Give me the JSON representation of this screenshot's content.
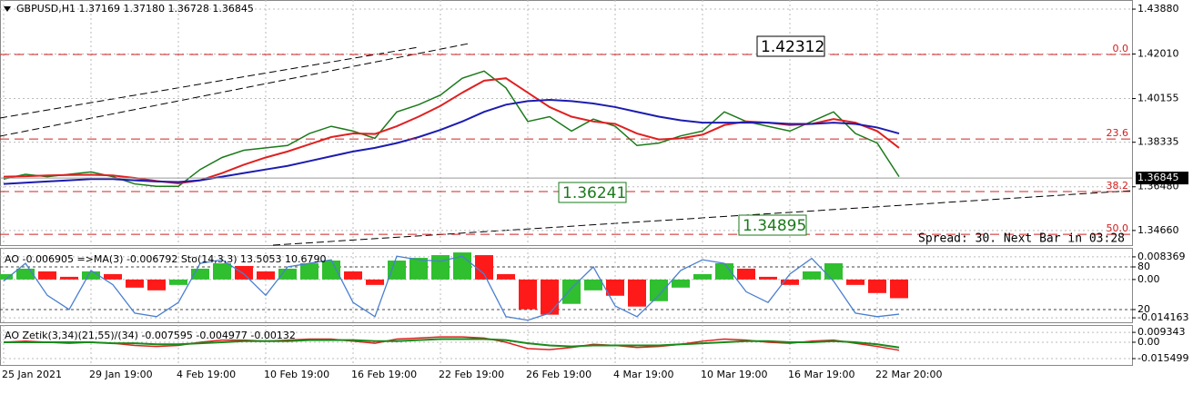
{
  "header": "GBPUSD,H1  1.37169 1.37180 1.36728 1.36845",
  "status": "Spread: 30. Next Bar in 03:28",
  "annotations": [
    "1.42312",
    "1.36241",
    "1.34895"
  ],
  "chart_data": [
    {
      "type": "line",
      "categories": [
        "25 Jan 2021",
        null,
        null,
        null,
        "29 Jan 19:00",
        null,
        null,
        null,
        "4 Feb 19:00",
        null,
        null,
        null,
        "10 Feb 19:00",
        null,
        null,
        null,
        "16 Feb 19:00",
        null,
        null,
        null,
        "22 Feb 19:00",
        null,
        null,
        null,
        "26 Feb 19:00",
        null,
        null,
        null,
        "4 Mar 19:00",
        null,
        null,
        null,
        "10 Mar 19:00",
        null,
        null,
        null,
        "16 Mar 19:00",
        null,
        null,
        null,
        "22 Mar 20:00",
        null
      ],
      "series": [
        {
          "color": "#1a7a1a",
          "values": [
            1.368,
            1.37,
            1.369,
            1.37,
            1.371,
            1.369,
            1.366,
            1.365,
            1.365,
            1.372,
            1.377,
            1.38,
            1.381,
            1.382,
            1.387,
            1.39,
            1.388,
            1.385,
            1.396,
            1.399,
            1.403,
            1.41,
            1.413,
            1.406,
            1.392,
            1.394,
            1.388,
            1.393,
            1.39,
            1.382,
            1.383,
            1.386,
            1.388,
            1.396,
            1.392,
            1.39,
            1.388,
            1.392,
            1.396,
            1.387,
            1.383,
            1.369
          ]
        },
        {
          "color": "#e02020",
          "values": [
            1.369,
            1.3692,
            1.3695,
            1.3697,
            1.3698,
            1.3695,
            1.3685,
            1.3672,
            1.3662,
            1.3675,
            1.3705,
            1.374,
            1.377,
            1.3795,
            1.3825,
            1.3855,
            1.387,
            1.3868,
            1.39,
            1.394,
            1.3985,
            1.404,
            1.409,
            1.41,
            1.404,
            1.398,
            1.394,
            1.392,
            1.391,
            1.387,
            1.3845,
            1.385,
            1.3865,
            1.3905,
            1.392,
            1.3915,
            1.3905,
            1.391,
            1.393,
            1.3915,
            1.388,
            1.381
          ]
        },
        {
          "color": "#1c1cb0",
          "values": [
            1.366,
            1.3665,
            1.367,
            1.3675,
            1.368,
            1.368,
            1.3675,
            1.367,
            1.3668,
            1.3675,
            1.369,
            1.3705,
            1.372,
            1.3735,
            1.3755,
            1.3775,
            1.3795,
            1.381,
            1.383,
            1.3855,
            1.3885,
            1.392,
            1.396,
            1.399,
            1.4005,
            1.401,
            1.4005,
            1.3995,
            1.398,
            1.396,
            1.394,
            1.3925,
            1.3915,
            1.3915,
            1.3915,
            1.3915,
            1.391,
            1.391,
            1.3915,
            1.391,
            1.3895,
            1.387
          ]
        }
      ],
      "ylim": [
        1.3405,
        1.4426
      ],
      "yticks": [
        {
          "value": 1.4388,
          "label": "1.43880"
        },
        {
          "value": 1.4201,
          "label": "1.42010"
        },
        1.40155,
        1.38335,
        {
          "value": 1.3648,
          "label": "1.36480"
        },
        {
          "value": 1.3466,
          "label": "1.34660"
        }
      ],
      "current_price": {
        "value": 1.36845,
        "label": "1.36845"
      },
      "fib_levels": [
        {
          "value": 1.4199,
          "label": "0.0"
        },
        {
          "value": 1.3847,
          "label": "23.6"
        },
        {
          "value": 1.3628,
          "label": "38.2"
        },
        {
          "value": 1.345,
          "label": "50.0"
        }
      ],
      "fib_color": "#d02020",
      "grid": true
    },
    {
      "type": "bar",
      "title": "AO -0.006905 =>MA(3) -0.006792 Sto(14,3,3) 13.5053 10.6790",
      "up_color": "#2fbf2f",
      "down_color": "#ff1a1a",
      "series": [
        {
          "values": [
            0.002,
            0.004,
            0.003,
            0.001,
            0.003,
            0.002,
            -0.003,
            -0.004,
            -0.002,
            0.004,
            0.006,
            0.005,
            0.003,
            0.004,
            0.006,
            0.007,
            0.003,
            -0.002,
            0.007,
            0.008,
            0.009,
            0.01,
            0.009,
            0.002,
            -0.011,
            -0.013,
            -0.009,
            -0.004,
            -0.006,
            -0.01,
            -0.008,
            -0.003,
            0.002,
            0.006,
            0.004,
            0.001,
            -0.002,
            0.003,
            0.006,
            -0.002,
            -0.005,
            -0.0069
          ]
        },
        {
          "color": "#4a7fd0",
          "axis": "y2",
          "values": [
            60,
            85,
            40,
            20,
            75,
            55,
            15,
            10,
            30,
            85,
            90,
            70,
            40,
            80,
            85,
            90,
            30,
            10,
            95,
            90,
            88,
            95,
            70,
            10,
            5,
            15,
            50,
            80,
            25,
            10,
            40,
            75,
            90,
            85,
            45,
            30,
            70,
            92,
            60,
            15,
            10,
            13.5
          ]
        }
      ],
      "ylim": [
        -0.0158,
        0.0117
      ],
      "yticks": [
        0.008369,
        {
          "value": 0,
          "label": "0.00"
        },
        -0.014163
      ],
      "y2lim": [
        2.1,
        106.8
      ],
      "y2ticks": [
        80,
        20
      ]
    },
    {
      "type": "line",
      "title": "AO Zetik(3,34)(21,55)/(34) -0.007595 -0.004977 -0.00132",
      "series": [
        {
          "color": "#e02020",
          "values": [
            0,
            0.001,
            0,
            -0.001,
            0,
            -0.001,
            -0.003,
            -0.004,
            -0.003,
            0,
            0.002,
            0.002,
            0.001,
            0.002,
            0.003,
            0.003,
            0.001,
            -0.001,
            0.003,
            0.004,
            0.005,
            0.005,
            0.004,
            0,
            -0.006,
            -0.007,
            -0.005,
            -0.002,
            -0.003,
            -0.005,
            -0.004,
            -0.002,
            0.001,
            0.003,
            0.002,
            0,
            -0.001,
            0.001,
            0.002,
            -0.001,
            -0.004,
            -0.0076
          ]
        },
        {
          "color": "#1a8a1a",
          "values": [
            0,
            0,
            0,
            0,
            0,
            -0.001,
            -0.001,
            -0.002,
            -0.002,
            -0.001,
            0,
            0.001,
            0.001,
            0.001,
            0.002,
            0.002,
            0.002,
            0.001,
            0.001,
            0.002,
            0.003,
            0.003,
            0.003,
            0.002,
            -0.001,
            -0.003,
            -0.004,
            -0.003,
            -0.003,
            -0.003,
            -0.003,
            -0.002,
            -0.001,
            0,
            0.001,
            0.001,
            0,
            0,
            0.001,
            0,
            -0.002,
            -0.005
          ]
        }
      ],
      "ylim": [
        -0.0215,
        0.0163
      ],
      "yticks": [
        0.009343,
        {
          "value": 0,
          "label": "0.00"
        },
        -0.015499
      ]
    }
  ]
}
